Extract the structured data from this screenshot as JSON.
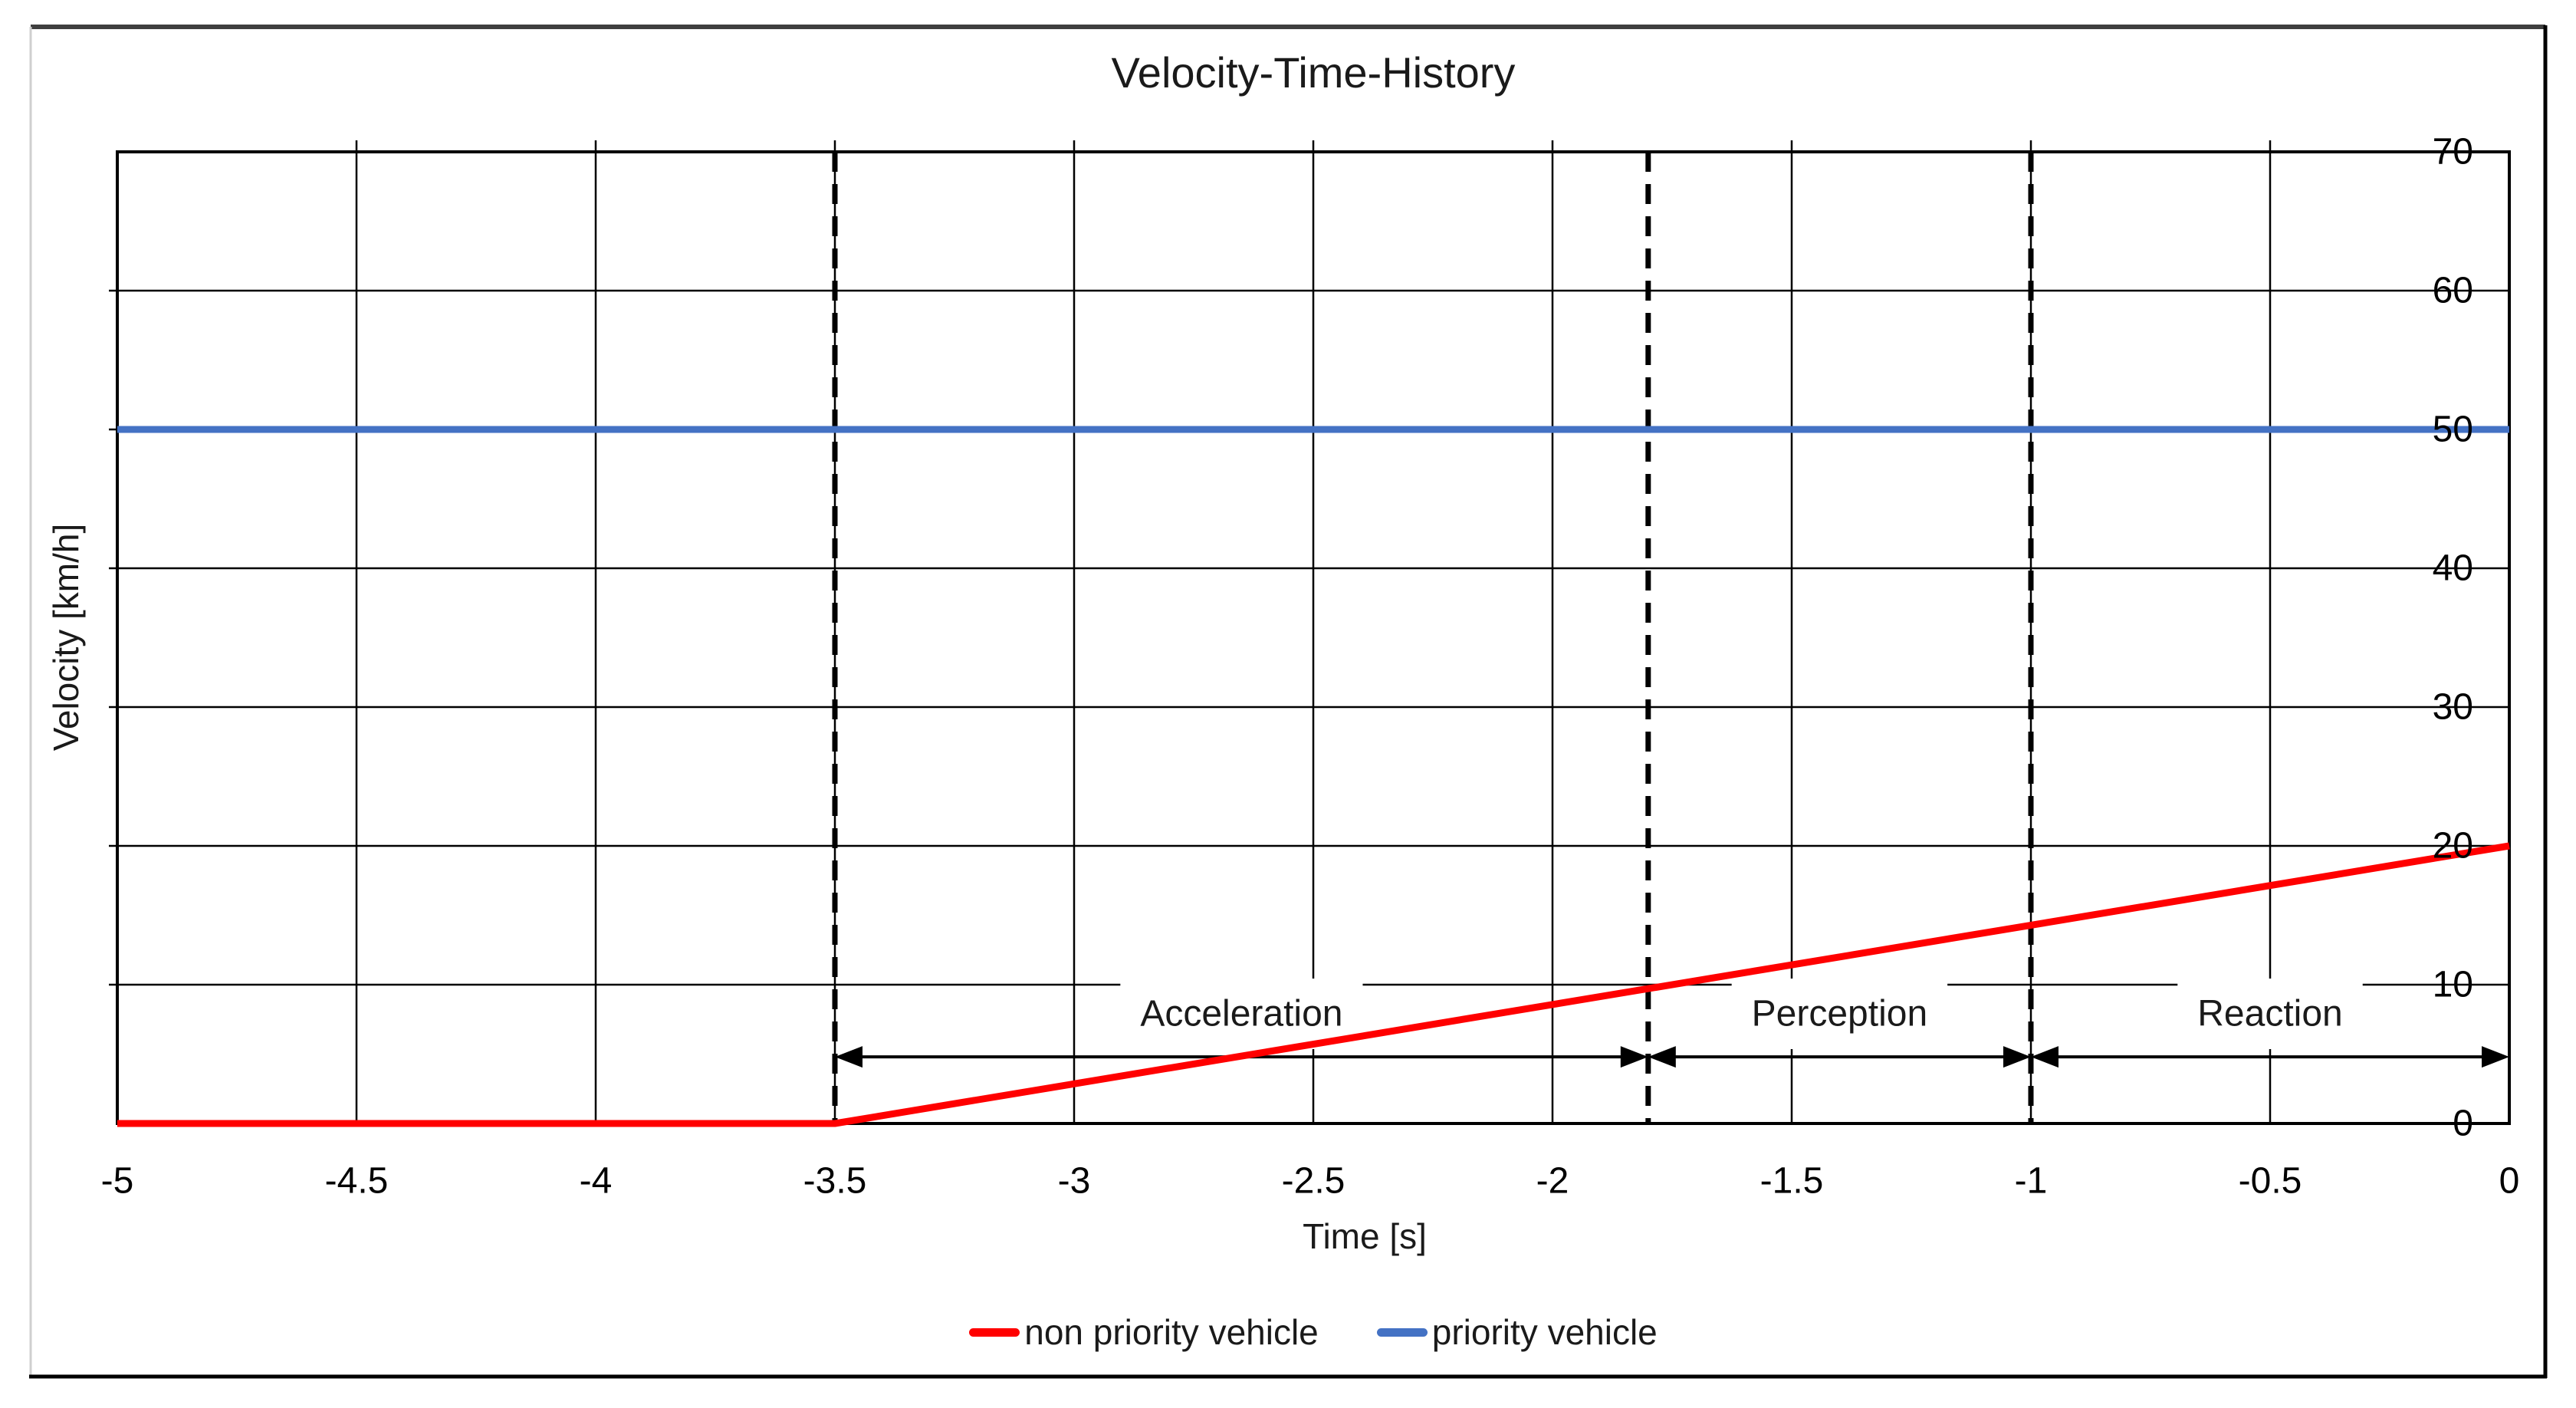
{
  "chart_data": {
    "type": "line",
    "title": "Velocity-Time-History",
    "xlabel": "Time [s]",
    "ylabel": "Velocity [km/h]",
    "xlim": [
      -5,
      0
    ],
    "ylim": [
      0,
      70
    ],
    "x_ticks": [
      -5,
      -4.5,
      -4,
      -3.5,
      -3,
      -2.5,
      -2,
      -1.5,
      -1,
      -0.5,
      0
    ],
    "x_tick_labels": [
      "-5",
      "-4.5",
      "-4",
      "-3.5",
      "-3",
      "-2.5",
      "-2",
      "-1.5",
      "-1",
      "-0.5",
      "0"
    ],
    "y_ticks": [
      0,
      10,
      20,
      30,
      40,
      50,
      60,
      70
    ],
    "y_tick_labels": [
      "0",
      "10",
      "20",
      "30",
      "40",
      "50",
      "60",
      "70"
    ],
    "grid": true,
    "legend_position": "bottom",
    "series": [
      {
        "name": "non priority vehicle",
        "color": "#ff0000",
        "points": [
          [
            -5,
            0
          ],
          [
            -3.5,
            0
          ],
          [
            0,
            20
          ]
        ]
      },
      {
        "name": "priority vehicle",
        "color": "#4472c4",
        "points": [
          [
            -5,
            50
          ],
          [
            0,
            50
          ]
        ]
      }
    ],
    "annotations": {
      "dashed_vertical_lines_x": [
        -3.5,
        -1.8,
        -1
      ],
      "phases": [
        {
          "label": "Acceleration",
          "from": -3.5,
          "to": -1.8
        },
        {
          "label": "Perception",
          "from": -1.8,
          "to": -1
        },
        {
          "label": "Reaction",
          "from": -1,
          "to": 0
        }
      ],
      "arrow_y": 4.8,
      "label_y": 7.9
    },
    "colors": {
      "grid": "#000000",
      "dashed": "#000000",
      "text": "#1a1a1a"
    }
  }
}
